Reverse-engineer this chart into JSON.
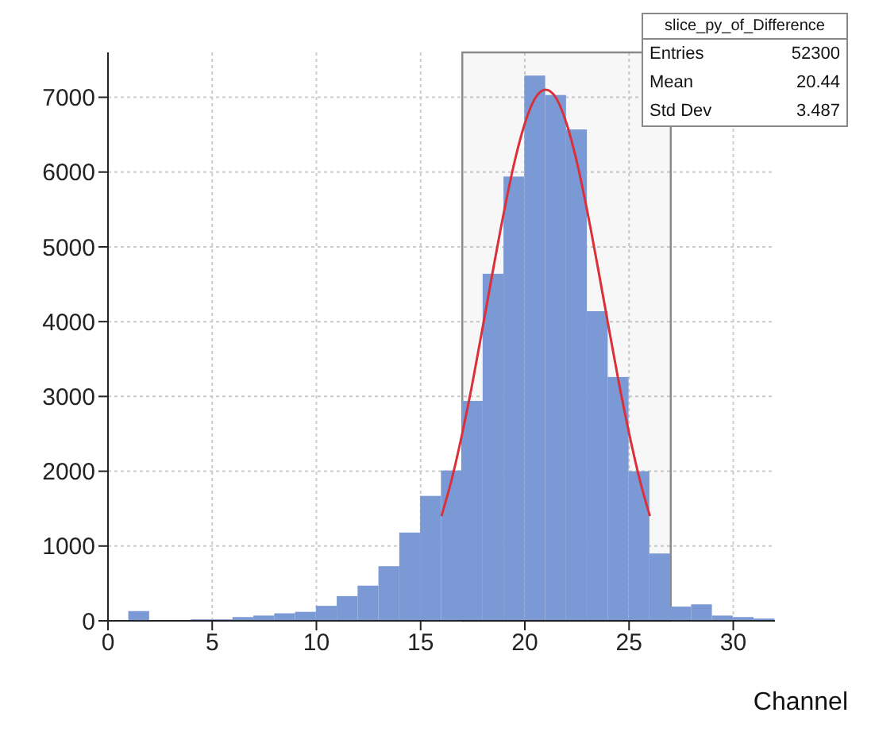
{
  "chart_data": {
    "type": "histogram",
    "xlabel": "Channel",
    "bins": [
      0,
      1,
      2,
      3,
      4,
      5,
      6,
      7,
      8,
      9,
      10,
      11,
      12,
      13,
      14,
      15,
      16,
      17,
      18,
      19,
      20,
      21,
      22,
      23,
      24,
      25,
      26,
      27,
      28,
      29,
      30,
      31,
      32
    ],
    "values": [
      0,
      130,
      10,
      10,
      20,
      20,
      50,
      70,
      100,
      120,
      200,
      330,
      470,
      730,
      1180,
      1670,
      2010,
      2940,
      4640,
      5940,
      7290,
      7030,
      6570,
      4140,
      3260,
      2000,
      900,
      190,
      220,
      70,
      50,
      30
    ],
    "color": "#7b99d4",
    "series": [
      {
        "type": "line",
        "color": "#d9303a",
        "x": [
          16,
          16.5,
          17,
          17.5,
          18,
          18.5,
          19,
          19.5,
          20,
          20.5,
          21,
          21.5,
          22,
          22.5,
          23,
          23.5,
          24,
          24.5,
          25,
          25.5,
          26
        ],
        "values": [
          1400,
          1900,
          2510,
          3200,
          3960,
          4730,
          5470,
          6130,
          6650,
          6990,
          7100,
          6990,
          6650,
          6130,
          5470,
          4730,
          3960,
          3200,
          2510,
          1900,
          1400
        ]
      }
    ],
    "bands": [
      {
        "axis": "x",
        "from": 17,
        "to": 27,
        "color": "#888888"
      }
    ],
    "xlim": [
      0,
      32
    ],
    "xticks": [
      0,
      5,
      10,
      15,
      20,
      25,
      30
    ],
    "ylim": [
      0,
      7600
    ],
    "yticks": [
      0,
      1000,
      2000,
      3000,
      4000,
      5000,
      6000,
      7000
    ],
    "grid": true,
    "marker": "none",
    "line_style": "solid",
    "annotations": [
      "slice_py_of_Difference",
      "Entries",
      "52300",
      "Mean",
      "20.44",
      "Std Dev",
      "3.487"
    ]
  }
}
